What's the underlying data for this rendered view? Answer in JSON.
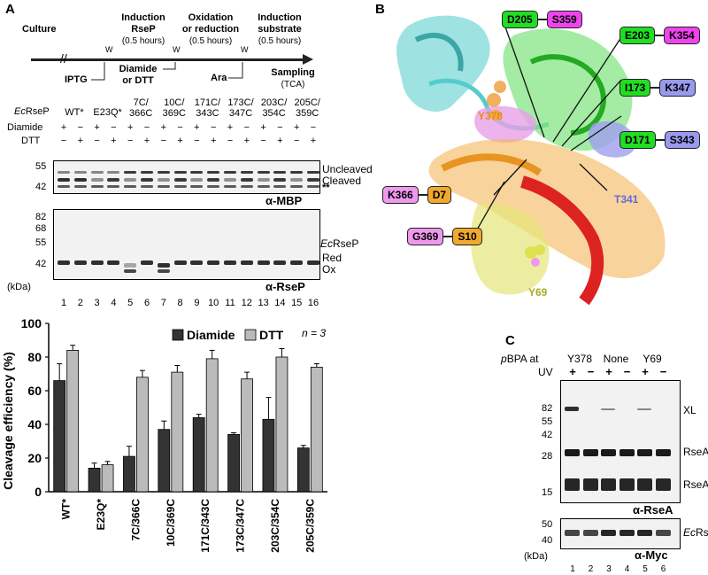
{
  "panels": {
    "a": "A",
    "b": "B",
    "c": "C"
  },
  "timeline": {
    "steps": [
      "Culture",
      "Induction\nRseP",
      "Oxidation\nor reduction",
      "Induction\nsubstrate",
      "Sampling"
    ],
    "durations": [
      "(0.5 hours)",
      "(0.5 hours)",
      "(0.5 hours)"
    ],
    "wash": "W",
    "additions": [
      "IPTG",
      "Diamide\nor DTT",
      "Ara"
    ],
    "sampling_note": "(TCA)"
  },
  "blot_a": {
    "row_labels": {
      "strain_italic": "Ec",
      "strain": "RseP",
      "diamide": "Diamide",
      "dtt": "DTT"
    },
    "strains": [
      "WT*",
      "E23Q*",
      "7C/\n366C",
      "10C/\n369C",
      "171C/\n343C",
      "173C/\n347C",
      "203C/\n354C",
      "205C/\n359C"
    ],
    "diamide_signs": [
      "+",
      "−",
      "+",
      "−",
      "+",
      "−",
      "+",
      "−",
      "+",
      "−",
      "+",
      "−",
      "+",
      "−",
      "+",
      "−"
    ],
    "dtt_signs": [
      "−",
      "+",
      "−",
      "+",
      "−",
      "+",
      "−",
      "+",
      "−",
      "+",
      "−",
      "+",
      "−",
      "+",
      "−",
      "+"
    ],
    "mbp_markers": [
      "55",
      "42"
    ],
    "mbp_annotations": [
      "Uncleaved",
      "Cleaved",
      "**"
    ],
    "mbp_antibody": "α-MBP",
    "rsep_markers": [
      "82",
      "68",
      "55",
      "42"
    ],
    "rsep_annotations": {
      "species_italic": "Ec",
      "species": "RseP",
      "red": "Red",
      "ox": "Ox"
    },
    "rsep_antibody": "α-RseP",
    "kda": "(kDa)",
    "lanes": [
      "1",
      "2",
      "3",
      "4",
      "5",
      "6",
      "7",
      "8",
      "9",
      "10",
      "11",
      "12",
      "13",
      "14",
      "15",
      "16"
    ]
  },
  "structure_b": {
    "residue_pairs_right": [
      {
        "left": "D205",
        "right": "S359"
      },
      {
        "left": "E203",
        "right": "K354"
      },
      {
        "left": "I173",
        "right": "K347"
      },
      {
        "left": "D171",
        "right": "S343"
      }
    ],
    "residue_pairs_left": [
      {
        "left": "K366",
        "right": "D7"
      },
      {
        "left": "G369",
        "right": "S10"
      }
    ],
    "floating_labels": [
      "Y378",
      "T341",
      "Y69"
    ],
    "colors": {
      "green": "#22dd22",
      "magenta": "#ee44ee",
      "lavender": "#9999ee",
      "pink": "#ee99ee",
      "orange": "#f0a830",
      "red": "#dd2222",
      "cyan": "#55cccc"
    }
  },
  "blot_c": {
    "header": {
      "pbpa_italic": "p",
      "pbpa": "BPA at",
      "uv": "UV"
    },
    "groups": [
      "Y378",
      "None",
      "Y69"
    ],
    "uv_signs": [
      "+",
      "−",
      "+",
      "−",
      "+",
      "−"
    ],
    "markers_top": [
      "82",
      "55",
      "42",
      "28",
      "15"
    ],
    "annotations": [
      "XL",
      "RseA FL",
      "RseAΔP"
    ],
    "antibody_top": "α-RseA",
    "markers_bottom": [
      "50",
      "40"
    ],
    "bottom_annotation_italic": "Ec",
    "bottom_annotation": "RseP-HM",
    "antibody_bottom": "α-Myc",
    "kda": "(kDa)",
    "lanes": [
      "1",
      "2",
      "3",
      "4",
      "5",
      "6"
    ]
  },
  "chart_data": {
    "type": "bar",
    "ylabel": "Cleavage efficiency (%)",
    "ylim": [
      0,
      100
    ],
    "yticks": [
      0,
      20,
      40,
      60,
      80,
      100
    ],
    "annotation": "n = 3",
    "legend_placement": "top",
    "categories": [
      "WT*",
      "E23Q*",
      "7C/366C",
      "10C/369C",
      "171C/343C",
      "173C/347C",
      "203C/354C",
      "205C/359C"
    ],
    "series": [
      {
        "name": "Diamide",
        "color": "#333333",
        "values": [
          66,
          14,
          21,
          37,
          44,
          34,
          43,
          26
        ],
        "errors": [
          10,
          3,
          6,
          5,
          2,
          1,
          13,
          1.5
        ]
      },
      {
        "name": "DTT",
        "color": "#bbbbbb",
        "values": [
          84,
          16,
          68,
          71,
          79,
          67,
          80,
          74
        ],
        "errors": [
          3,
          2,
          4,
          4,
          5,
          4,
          5,
          2
        ]
      }
    ]
  }
}
